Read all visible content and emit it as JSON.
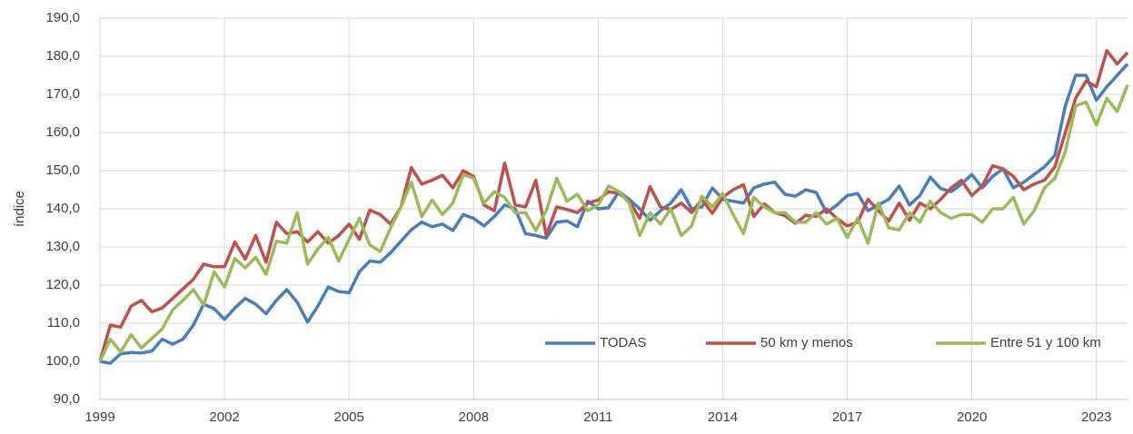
{
  "chart_data": {
    "type": "line",
    "ylabel": "índice",
    "x": [
      1999,
      1999.25,
      1999.5,
      1999.75,
      2000,
      2000.25,
      2000.5,
      2000.75,
      2001,
      2001.25,
      2001.5,
      2001.75,
      2002,
      2002.25,
      2002.5,
      2002.75,
      2003,
      2003.25,
      2003.5,
      2003.75,
      2004,
      2004.25,
      2004.5,
      2004.75,
      2005,
      2005.25,
      2005.5,
      2005.75,
      2006,
      2006.25,
      2006.5,
      2006.75,
      2007,
      2007.25,
      2007.5,
      2007.75,
      2008,
      2008.25,
      2008.5,
      2008.75,
      2009,
      2009.25,
      2009.5,
      2009.75,
      2010,
      2010.25,
      2010.5,
      2010.75,
      2011,
      2011.25,
      2011.5,
      2011.75,
      2012,
      2012.25,
      2012.5,
      2012.75,
      2013,
      2013.25,
      2013.5,
      2013.75,
      2014,
      2014.25,
      2014.5,
      2014.75,
      2015,
      2015.25,
      2015.5,
      2015.75,
      2016,
      2016.25,
      2016.5,
      2016.75,
      2017,
      2017.25,
      2017.5,
      2017.75,
      2018,
      2018.25,
      2018.5,
      2018.75,
      2019,
      2019.25,
      2019.5,
      2019.75,
      2020,
      2020.25,
      2020.5,
      2020.75,
      2021,
      2021.25,
      2021.5,
      2021.75,
      2022,
      2022.25,
      2022.5,
      2022.75,
      2023,
      2023.25,
      2023.5,
      2023.75
    ],
    "series": [
      {
        "name": "TODAS",
        "color": "#4a7ebb",
        "values": [
          100,
          99.5,
          102,
          102.3,
          102.2,
          102.7,
          105.8,
          104.5,
          105.8,
          109.5,
          115,
          113.8,
          111,
          114,
          116.5,
          115,
          112.5,
          116,
          118.8,
          115.5,
          110.3,
          114.5,
          119.5,
          118.3,
          118,
          123.5,
          126.3,
          126,
          128.5,
          131.5,
          134.5,
          136.5,
          135.3,
          136,
          134.3,
          138.5,
          137.5,
          135.5,
          138,
          141,
          140,
          133.5,
          133,
          132.3,
          136.5,
          136.8,
          135.3,
          142,
          140,
          140.3,
          144.5,
          142.5,
          140,
          137,
          139.5,
          141.5,
          145,
          140,
          140.5,
          145.5,
          142.5,
          142,
          141.5,
          145.5,
          146.5,
          147,
          143.8,
          143.3,
          145,
          144.3,
          139,
          141,
          143.5,
          144,
          139.5,
          141,
          142.5,
          146,
          141,
          143.5,
          148.3,
          145.3,
          144.5,
          146.5,
          149,
          145.5,
          148.5,
          150.5,
          145.5,
          147,
          149,
          151,
          154,
          167,
          175,
          175,
          168.5,
          172,
          175,
          178
        ]
      },
      {
        "name": "50 km y menos",
        "color": "#c0504d",
        "values": [
          100,
          109.5,
          109,
          114.5,
          116,
          113,
          114,
          116.5,
          119,
          121.5,
          125.5,
          124.8,
          124.8,
          131.3,
          126.8,
          133,
          126,
          136.5,
          133.5,
          134,
          131.3,
          134,
          131,
          133,
          136,
          132,
          139.7,
          138.5,
          136,
          140.5,
          150.8,
          146.5,
          147.5,
          148.8,
          145.5,
          150,
          148.5,
          141,
          139.5,
          152,
          141,
          140.5,
          147.5,
          133,
          140.5,
          139.8,
          139,
          141.5,
          142.3,
          144.5,
          144,
          142,
          137.5,
          145.8,
          140.5,
          139.8,
          141.5,
          139,
          142.5,
          138.8,
          143,
          145,
          146.3,
          138,
          141.3,
          139,
          138.2,
          136.2,
          138.3,
          138,
          140,
          137.5,
          135.5,
          136.5,
          142.5,
          139.5,
          136.8,
          141.5,
          137,
          141.5,
          140,
          142.5,
          145.5,
          147.5,
          143.5,
          146,
          151.3,
          150.5,
          148.5,
          145,
          146.5,
          147.5,
          151,
          160,
          169,
          173.5,
          172,
          181.5,
          178,
          181
        ]
      },
      {
        "name": "Entre 51 y 100 km",
        "color": "#9bbb59",
        "values": [
          100,
          105.8,
          102.5,
          107,
          103.5,
          106,
          108.5,
          113.5,
          116,
          118.8,
          114.8,
          123.5,
          119.5,
          127,
          124.5,
          127.3,
          122.8,
          131.5,
          131,
          139,
          125.5,
          129.5,
          132.5,
          126.3,
          132,
          137.5,
          130.5,
          128.8,
          135,
          140.5,
          147,
          138,
          142.3,
          138.5,
          141.5,
          149,
          148,
          141.5,
          144.5,
          143,
          139,
          139,
          134.3,
          139.5,
          148,
          142,
          143.8,
          139.5,
          141,
          146,
          144.5,
          141.5,
          133,
          139,
          136,
          140,
          133,
          135.5,
          143.3,
          140.5,
          144,
          138.5,
          133.5,
          143,
          140.5,
          139,
          139,
          136.5,
          136.5,
          139,
          136,
          137.5,
          132.5,
          137.5,
          131,
          141.5,
          135,
          134.5,
          139,
          136.5,
          142,
          139,
          137.5,
          138.5,
          138.5,
          136.5,
          140,
          140,
          143,
          136,
          139.5,
          145.5,
          148,
          155,
          167,
          168,
          162,
          169,
          165.5,
          172.5
        ]
      }
    ],
    "xlim": [
      1999,
      2023.75
    ],
    "xticks": [
      1999,
      2002,
      2005,
      2008,
      2011,
      2014,
      2017,
      2020,
      2023
    ],
    "ylim": [
      90,
      190
    ],
    "yticks": [
      {
        "value": 90,
        "label": "90,0"
      },
      {
        "value": 100,
        "label": "100,0"
      },
      {
        "value": 110,
        "label": "110,0"
      },
      {
        "value": 120,
        "label": "120,0"
      },
      {
        "value": 130,
        "label": "130,0"
      },
      {
        "value": 140,
        "label": "140,0"
      },
      {
        "value": 150,
        "label": "150,0"
      },
      {
        "value": 160,
        "label": "160,0"
      },
      {
        "value": 170,
        "label": "170,0"
      },
      {
        "value": 180,
        "label": "180,0"
      },
      {
        "value": 190,
        "label": "190,0"
      }
    ],
    "grid": true,
    "legend": "lower right"
  }
}
